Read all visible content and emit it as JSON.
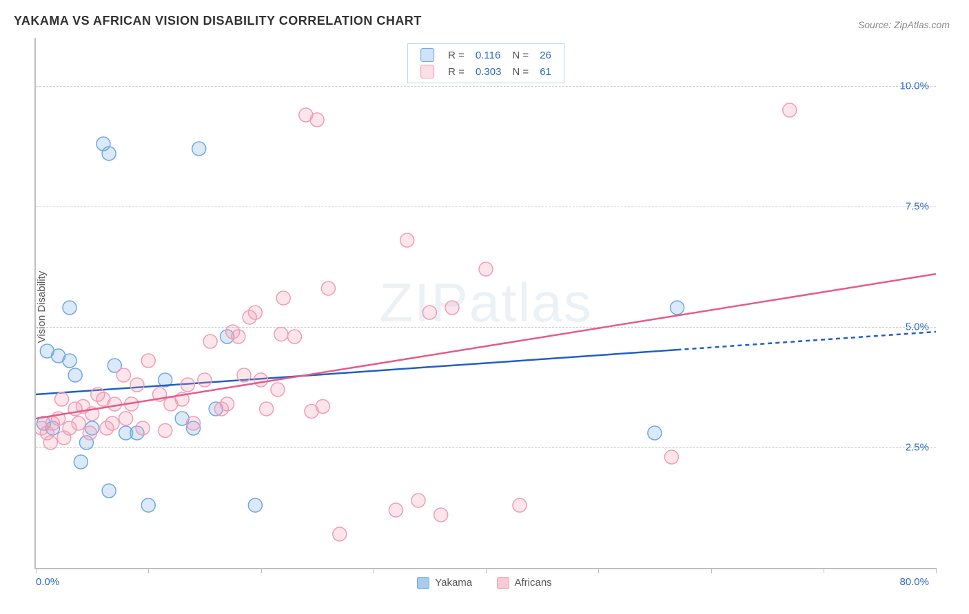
{
  "title": "YAKAMA VS AFRICAN VISION DISABILITY CORRELATION CHART",
  "source": "Source: ZipAtlas.com",
  "ylabel": "Vision Disability",
  "watermark": "ZIPatlas",
  "chart": {
    "type": "scatter",
    "background_color": "#ffffff",
    "grid_color": "#cccccc",
    "axis_color": "#bfbfbf",
    "axis_label_color": "#2868c7",
    "text_color": "#555555",
    "title_color": "#333333",
    "title_fontsize": 18,
    "label_fontsize": 15,
    "xlim": [
      0,
      80
    ],
    "ylim": [
      0,
      11
    ],
    "x_axis_labels": [
      {
        "value": 0,
        "text": "0.0%"
      },
      {
        "value": 80,
        "text": "80.0%"
      }
    ],
    "x_ticks": [
      0,
      10,
      20,
      30,
      40,
      50,
      60,
      70,
      80
    ],
    "y_gridlines": [
      {
        "value": 2.5,
        "text": "2.5%"
      },
      {
        "value": 5.0,
        "text": "5.0%"
      },
      {
        "value": 7.5,
        "text": "7.5%"
      },
      {
        "value": 10.0,
        "text": "10.0%"
      }
    ],
    "marker_radius": 10,
    "marker_stroke_width": 1.5,
    "marker_fill_opacity": 0.25,
    "line_width": 2.5,
    "series": [
      {
        "name": "Yakama",
        "color": "#6fa8e6",
        "line_color": "#1f5fc4",
        "R": "0.116",
        "N": "26",
        "trend": {
          "x1": 0,
          "y1": 3.6,
          "x2": 80,
          "y2": 4.9,
          "solid_until_x": 57
        },
        "points": [
          [
            1.0,
            4.5
          ],
          [
            2.0,
            4.4
          ],
          [
            3.0,
            4.3
          ],
          [
            6.0,
            8.8
          ],
          [
            6.5,
            8.6
          ],
          [
            3.0,
            5.4
          ],
          [
            1.5,
            2.9
          ],
          [
            0.7,
            3.0
          ],
          [
            4.0,
            2.2
          ],
          [
            4.5,
            2.6
          ],
          [
            6.5,
            1.6
          ],
          [
            5.0,
            2.9
          ],
          [
            8.0,
            2.8
          ],
          [
            10.0,
            1.3
          ],
          [
            7.0,
            4.2
          ],
          [
            9.0,
            2.8
          ],
          [
            11.5,
            3.9
          ],
          [
            13.0,
            3.1
          ],
          [
            14.5,
            8.7
          ],
          [
            14.0,
            2.9
          ],
          [
            16.0,
            3.3
          ],
          [
            17.0,
            4.8
          ],
          [
            19.5,
            1.3
          ],
          [
            55.0,
            2.8
          ],
          [
            57.0,
            5.4
          ],
          [
            3.5,
            4.0
          ]
        ]
      },
      {
        "name": "Africans",
        "color": "#f29cb3",
        "line_color": "#e75a87",
        "R": "0.303",
        "N": "61",
        "trend": {
          "x1": 0,
          "y1": 3.1,
          "x2": 80,
          "y2": 6.1,
          "solid_until_x": 80
        },
        "points": [
          [
            0.5,
            2.9
          ],
          [
            1.0,
            2.8
          ],
          [
            1.5,
            3.0
          ],
          [
            2.0,
            3.1
          ],
          [
            1.3,
            2.6
          ],
          [
            2.5,
            2.7
          ],
          [
            3.0,
            2.9
          ],
          [
            3.5,
            3.3
          ],
          [
            4.2,
            3.35
          ],
          [
            4.8,
            2.8
          ],
          [
            5.5,
            3.6
          ],
          [
            6.0,
            3.5
          ],
          [
            6.3,
            2.9
          ],
          [
            7.0,
            3.4
          ],
          [
            7.8,
            4.0
          ],
          [
            8.5,
            3.4
          ],
          [
            9.0,
            3.8
          ],
          [
            10.0,
            4.3
          ],
          [
            9.5,
            2.9
          ],
          [
            11.0,
            3.6
          ],
          [
            12.0,
            3.4
          ],
          [
            13.5,
            3.8
          ],
          [
            14.0,
            3.0
          ],
          [
            15.0,
            3.9
          ],
          [
            15.5,
            4.7
          ],
          [
            16.5,
            3.3
          ],
          [
            17.5,
            4.9
          ],
          [
            18.0,
            4.8
          ],
          [
            18.5,
            4.0
          ],
          [
            19.0,
            5.2
          ],
          [
            19.5,
            5.3
          ],
          [
            20.0,
            3.9
          ],
          [
            20.5,
            3.3
          ],
          [
            21.5,
            3.7
          ],
          [
            22.0,
            5.6
          ],
          [
            21.8,
            4.85
          ],
          [
            23.0,
            4.8
          ],
          [
            24.0,
            9.4
          ],
          [
            25.0,
            9.3
          ],
          [
            25.5,
            3.35
          ],
          [
            27.0,
            0.7
          ],
          [
            26.0,
            5.8
          ],
          [
            24.5,
            3.25
          ],
          [
            32.0,
            1.2
          ],
          [
            33.0,
            6.8
          ],
          [
            35.0,
            5.3
          ],
          [
            34.0,
            1.4
          ],
          [
            37.0,
            5.4
          ],
          [
            36.0,
            1.1
          ],
          [
            40.0,
            6.2
          ],
          [
            43.0,
            1.3
          ],
          [
            56.5,
            2.3
          ],
          [
            67.0,
            9.5
          ],
          [
            2.3,
            3.5
          ],
          [
            3.8,
            3.0
          ],
          [
            5.0,
            3.2
          ],
          [
            6.8,
            3.0
          ],
          [
            8.0,
            3.1
          ],
          [
            11.5,
            2.85
          ],
          [
            13.0,
            3.5
          ],
          [
            17.0,
            3.4
          ]
        ]
      }
    ]
  },
  "legend_top": {
    "border_color": "#b8d4ed"
  },
  "legend_bottom": {
    "items": [
      {
        "label": "Yakama",
        "swatch": "#a8cbee",
        "border": "#6fa8e6"
      },
      {
        "label": "Africans",
        "swatch": "#f8c9d6",
        "border": "#f29cb3"
      }
    ]
  }
}
